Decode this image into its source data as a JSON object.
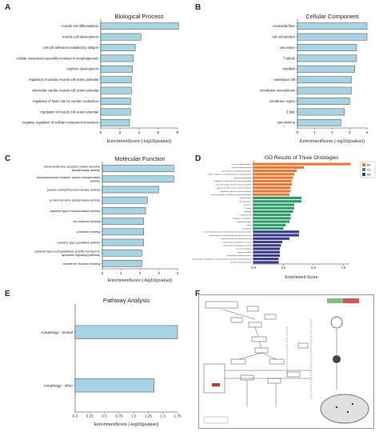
{
  "colors": {
    "bar_fill": "#a7d3e2",
    "bar_stroke": "#222222",
    "bp": "#ee7733",
    "cc": "#2e9c6a",
    "mf": "#3d3d8c"
  },
  "panels": {
    "A": "A",
    "B": "B",
    "C": "C",
    "D": "D",
    "E": "E",
    "F": "F"
  },
  "chart_data": [
    {
      "id": "A",
      "type": "bar",
      "orientation": "horizontal",
      "title": "Biological Process",
      "xlabel": "EnrichmentScore (-log10(pvalue))",
      "xlim": [
        0,
        8
      ],
      "xticks": [
        0,
        2,
        4,
        6,
        8
      ],
      "categories": [
        "muscle cell differentiation",
        "muscle cell development",
        "cell-cell adhesion mediated by integrin",
        "cellular component assembly involved in morphogenesis",
        "nephron development",
        "regulation of cardiac muscle cell action potential",
        "ventricular cardiac muscle cell action potential",
        "regulation of heart rate by cardiac conduction",
        "regulation of muscle cell action potential",
        "negative regulation of cellular component movement"
      ],
      "values": [
        8.1,
        4.2,
        3.6,
        3.4,
        3.3,
        3.2,
        3.2,
        3.1,
        3.1,
        3.0
      ]
    },
    {
      "id": "B",
      "type": "bar",
      "orientation": "horizontal",
      "title": "Cellular Component",
      "xlabel": "EnrichmentScore (-log10(pvalue))",
      "xlim": [
        0,
        4
      ],
      "xticks": [
        0,
        1,
        2,
        3,
        4
      ],
      "categories": [
        "contractile fiber",
        "cell-cell junction",
        "sarcomere",
        "T-tubule",
        "myofibril",
        "membrane raft",
        "membrane microdomain",
        "membrane region",
        "Z disc",
        "sarcolemma"
      ],
      "values": [
        4.0,
        4.0,
        3.4,
        3.4,
        3.3,
        3.1,
        3.1,
        3.0,
        2.7,
        2.5
      ]
    },
    {
      "id": "C",
      "type": "bar",
      "orientation": "horizontal",
      "title": "Molecular Function",
      "xlabel": "EnrichmentScore (-log10(pvalue))",
      "xlim": [
        0,
        4
      ],
      "xticks": [
        0,
        1,
        2,
        3,
        4
      ],
      "categories": [
        "transmembrane receptor protein tyrosine phosphatase activity",
        "transmembrane receptor protein phosphatase activity",
        "protein serine/threonine kinase activity",
        "protein tyrosine phosphatase activity",
        "cysteine-type endopeptidase activity",
        "ion channel binding",
        "protease binding",
        "cysteine-type peptidase activity",
        "cysteine-type endopeptidase activity involved in apoptotic signaling pathway",
        "transferrin receptor binding"
      ],
      "values": [
        3.8,
        3.8,
        3.0,
        2.4,
        2.3,
        2.2,
        2.2,
        2.2,
        2.1,
        2.1
      ]
    },
    {
      "id": "D",
      "type": "bar",
      "orientation": "horizontal",
      "title": "GO Results of Three Ontologies",
      "xlabel": "Enrichment Score",
      "xlim": [
        0,
        8
      ],
      "xticks": [
        0.0,
        2.5,
        5.0,
        7.5
      ],
      "xtick_labels": [
        "0.0",
        "2.5",
        "5.0",
        "7.5"
      ],
      "legend": {
        "placement": "top-right",
        "entries": [
          "BP",
          "CC",
          "MF"
        ]
      },
      "categories": [
        "muscle cell differentiation",
        "muscle cell development",
        "cell-cell adhesion mediated by integrin",
        "cellular component assembly involved in morphogenesis",
        "nephron development",
        "regulation of cardiac muscle cell action potential",
        "ventricular cardiac muscle cell action potential",
        "regulation of heart rate by cardiac conduction",
        "regulation of muscle cell action potential",
        "negative regulation of cellular component movement",
        "contractile fiber",
        "cell-cell junction",
        "sarcomere",
        "T-tubule",
        "myofibril",
        "membrane raft",
        "membrane microdomain",
        "membrane region",
        "Z disc",
        "sarcolemma",
        "transmembrane receptor protein tyrosine phosphatase activity",
        "transmembrane receptor protein phosphatase activity",
        "protein serine/threonine kinase activity",
        "protein tyrosine phosphatase activity",
        "cysteine-type endopeptidase activity",
        "ion channel binding",
        "protease binding",
        "cysteine-type peptidase activity",
        "cysteine-type endopeptidase activity involved in apoptotic signaling pathway",
        "transferrin receptor binding"
      ],
      "groups": [
        "BP",
        "BP",
        "BP",
        "BP",
        "BP",
        "BP",
        "BP",
        "BP",
        "BP",
        "BP",
        "CC",
        "CC",
        "CC",
        "CC",
        "CC",
        "CC",
        "CC",
        "CC",
        "CC",
        "CC",
        "MF",
        "MF",
        "MF",
        "MF",
        "MF",
        "MF",
        "MF",
        "MF",
        "MF",
        "MF"
      ],
      "values": [
        8.1,
        4.2,
        3.6,
        3.4,
        3.3,
        3.2,
        3.2,
        3.1,
        3.1,
        3.0,
        4.0,
        4.0,
        3.4,
        3.4,
        3.3,
        3.1,
        3.1,
        3.0,
        2.7,
        2.5,
        3.8,
        3.8,
        3.0,
        2.4,
        2.3,
        2.2,
        2.2,
        2.2,
        2.1,
        2.1
      ]
    },
    {
      "id": "E",
      "type": "bar",
      "orientation": "horizontal",
      "title": "Pathway Analysis",
      "xlabel": "EnrichmentScore (-log10(pvalue))",
      "xlim": [
        0,
        1.75
      ],
      "xticks": [
        0.0,
        0.25,
        0.5,
        0.75,
        1.0,
        1.25,
        1.5,
        1.75
      ],
      "xtick_labels": [
        "0.0",
        "0.25",
        "0.5",
        "0.75",
        "1.0",
        "1.25",
        "1.5",
        "1.75"
      ],
      "categories": [
        "Autophagy - animal",
        "Autophagy - other"
      ],
      "values": [
        1.75,
        1.35
      ]
    }
  ]
}
